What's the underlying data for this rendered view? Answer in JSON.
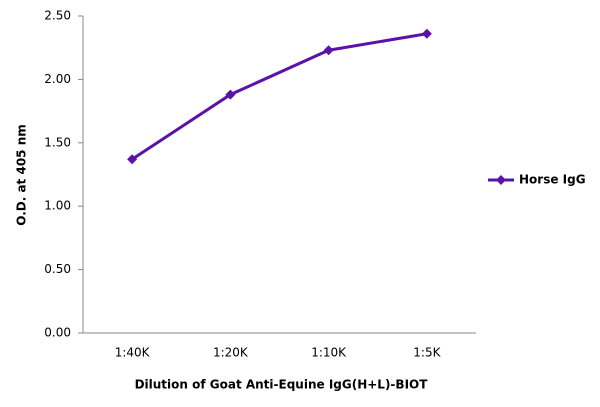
{
  "chart_data": {
    "type": "line",
    "x_label": "Dilution of Goat Anti-Equine IgG(H+L)-BIOT",
    "y_label": "O.D. at 405 nm",
    "categories": [
      "1:40K",
      "1:20K",
      "1:10K",
      "1:5K"
    ],
    "series": [
      {
        "name": "Horse IgG",
        "color": "#5c12a8",
        "values": [
          1.37,
          1.88,
          2.23,
          2.36
        ]
      }
    ],
    "ylim": [
      0,
      2.5
    ],
    "yticks": [
      {
        "value": 0,
        "label": "0.00"
      },
      {
        "value": 0.5,
        "label": "0.50"
      },
      {
        "value": 1,
        "label": "1.00"
      },
      {
        "value": 1.5,
        "label": "1.50"
      },
      {
        "value": 2,
        "label": "2.00"
      },
      {
        "value": 2.5,
        "label": "2.50"
      }
    ],
    "grid": false,
    "legend": "right"
  }
}
